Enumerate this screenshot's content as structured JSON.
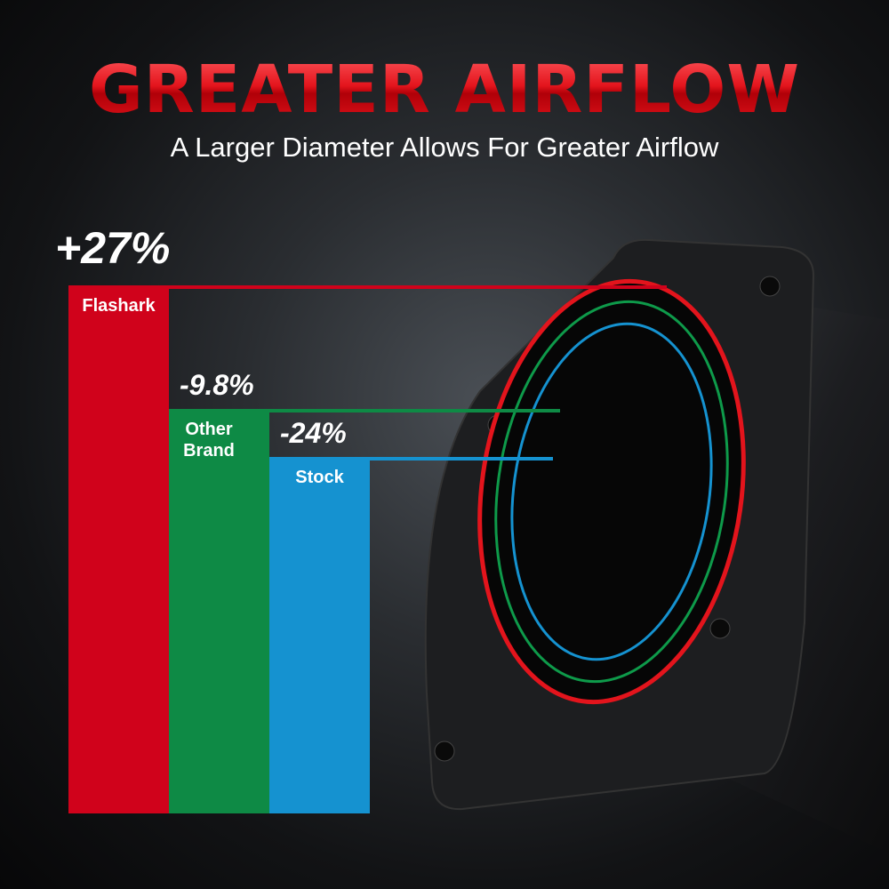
{
  "header": {
    "title": "GREATER AIRFLOW",
    "subtitle": "A Larger Diameter Allows For Greater Airflow"
  },
  "chart_data": {
    "type": "bar",
    "categories": [
      "Flashark",
      "Other Brand",
      "Stock"
    ],
    "values": [
      27,
      -9.8,
      -24
    ],
    "data_labels": [
      "+27%",
      "-9.8%",
      "-24%"
    ],
    "colors": [
      "#d0021b",
      "#0e8a45",
      "#1592d0"
    ],
    "title": "GREATER AIRFLOW",
    "xlabel": "",
    "ylabel": ""
  }
}
